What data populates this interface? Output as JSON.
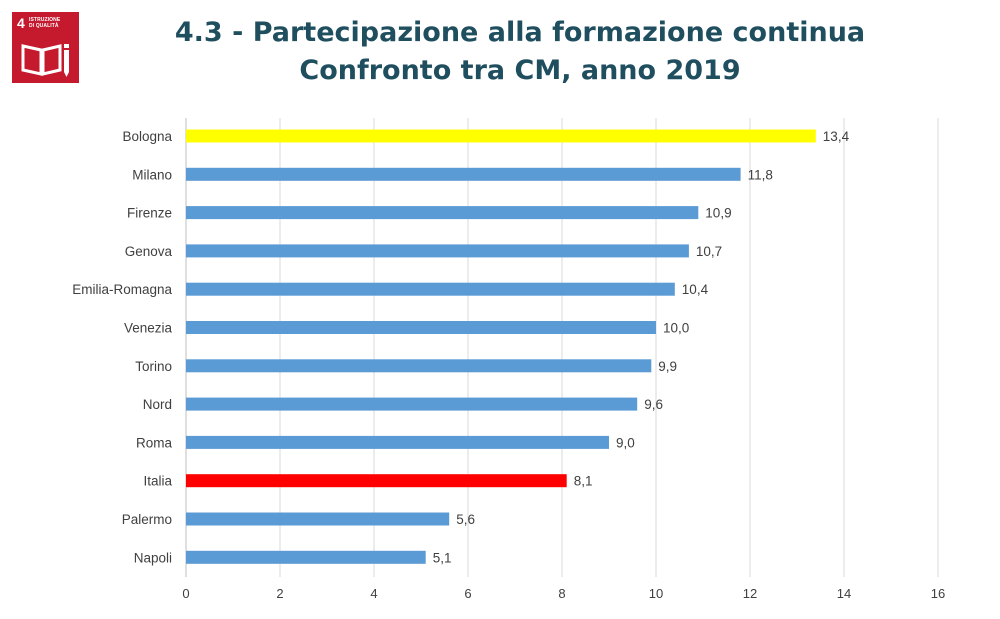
{
  "badge": {
    "number": "4",
    "label_line1": "ISTRUZIONE",
    "label_line2": "DI QUALITÀ",
    "icon": "book-pencil-icon",
    "color": "#c5192d"
  },
  "title": {
    "line1": "4.3 - Partecipazione alla formazione continua",
    "line2": "Confronto tra CM, anno 2019"
  },
  "chart_data": {
    "type": "bar",
    "orientation": "horizontal",
    "categories": [
      "Bologna",
      "Milano",
      "Firenze",
      "Genova",
      "Emilia-Romagna",
      "Venezia",
      "Torino",
      "Nord",
      "Roma",
      "Italia",
      "Palermo",
      "Napoli"
    ],
    "values": [
      13.4,
      11.8,
      10.9,
      10.7,
      10.4,
      10.0,
      9.9,
      9.6,
      9.0,
      8.1,
      5.6,
      5.1
    ],
    "value_labels": [
      "13,4",
      "11,8",
      "10,9",
      "10,7",
      "10,4",
      "10,0",
      "9,9",
      "9,6",
      "9,0",
      "8,1",
      "5,6",
      "5,1"
    ],
    "bar_colors": [
      "#ffff00",
      "#5b9bd5",
      "#5b9bd5",
      "#5b9bd5",
      "#5b9bd5",
      "#5b9bd5",
      "#5b9bd5",
      "#5b9bd5",
      "#5b9bd5",
      "#ff0000",
      "#5b9bd5",
      "#5b9bd5"
    ],
    "xlim": [
      0,
      16
    ],
    "xticks": [
      "0",
      "2",
      "4",
      "6",
      "8",
      "10",
      "12",
      "14",
      "16"
    ],
    "grid": "vertical",
    "legend": "none"
  }
}
